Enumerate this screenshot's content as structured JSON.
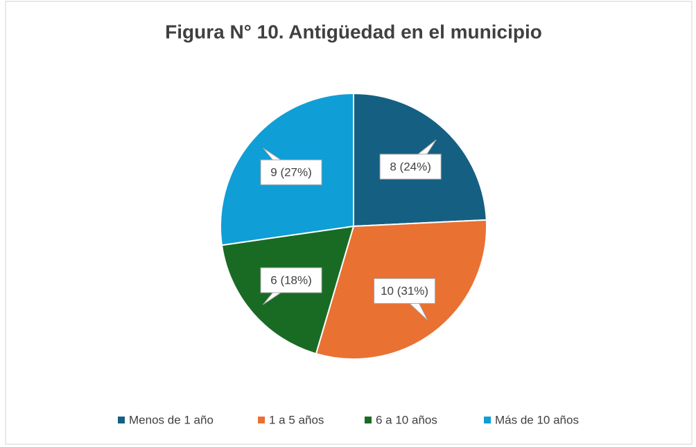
{
  "chart_data": {
    "type": "pie",
    "title": "Figura N° 10. Antigüedad en el municipio",
    "categories": [
      "Menos de 1 año",
      "1 a 5 años",
      "6 a 10 años",
      "Más de 10 años"
    ],
    "values": [
      8,
      10,
      6,
      9
    ],
    "value_labels": [
      "8 (24%)",
      "10 (31%)",
      "6 (18%)",
      "9 (27%)"
    ],
    "colors": [
      "#156082",
      "#e97132",
      "#196b24",
      "#0f9ed5"
    ],
    "legend": "bottom"
  }
}
